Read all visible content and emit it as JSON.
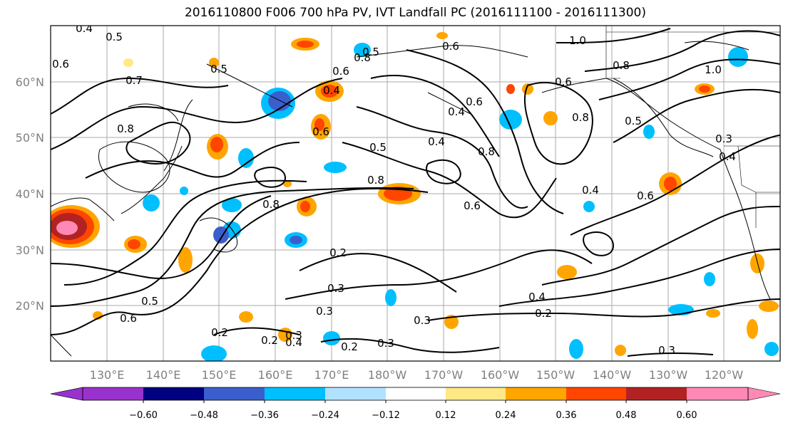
{
  "title": "2016110800 F006 700 hPa PV, IVT Landfall PC (2016111100 - 2016111300)",
  "lat_labels": [
    "60°N",
    "50°N",
    "40°N",
    "30°N",
    "20°N"
  ],
  "lon_labels": [
    "130°E",
    "140°E",
    "150°E",
    "160°E",
    "170°E",
    "180°W",
    "170°W",
    "160°W",
    "150°W",
    "140°W",
    "130°W",
    "120°W"
  ],
  "colorbar": {
    "ticks": [
      "−0.60",
      "−0.48",
      "−0.36",
      "−0.24",
      "−0.12",
      "0.12",
      "0.24",
      "0.36",
      "0.48",
      "0.60"
    ],
    "colors": [
      "#9932cc",
      "#000080",
      "#3a5fcd",
      "#00bfff",
      "#b0e2ff",
      "#ffffff",
      "#ffe885",
      "#ffa500",
      "#ff4500",
      "#b22222",
      "#ff89b4"
    ]
  },
  "contour_labels": [
    "0.4",
    "0.5",
    "0.6",
    "0.7",
    "0.8",
    "0.4",
    "0.6",
    "0.5",
    "0.6",
    "0.8",
    "0.5",
    "0.4",
    "0.6",
    "0.8",
    "0.8",
    "0.6",
    "0.4",
    "0.8",
    "0.2",
    "0.3",
    "0.3",
    "0.4",
    "0.2",
    "0.3",
    "0.2",
    "0.3",
    "0.5",
    "0.6",
    "0.2",
    "0.4",
    "0.3",
    "0.2",
    "0.3",
    "1.0",
    "1.0",
    "0.8",
    "0.6",
    "0.5",
    "0.3",
    "0.4",
    "0.6",
    "0.4",
    "0.8",
    "0.5",
    "0.6"
  ]
}
